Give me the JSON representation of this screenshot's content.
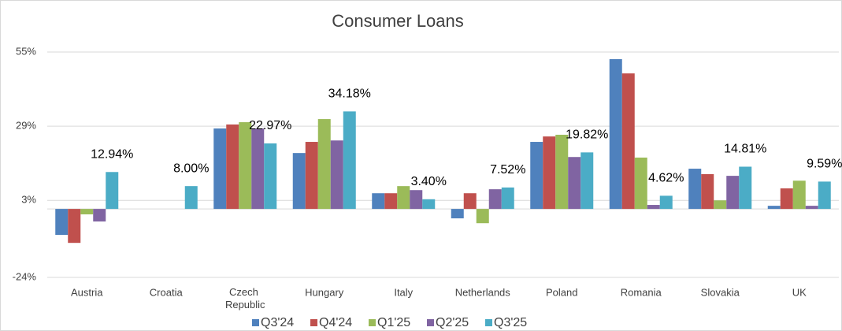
{
  "chart_data": {
    "type": "bar",
    "title": "Consumer Loans",
    "categories": [
      "Austria",
      "Croatia",
      "Czech Republic",
      "Hungary",
      "Italy",
      "Netherlands",
      "Poland",
      "Romania",
      "Slovakia",
      "UK"
    ],
    "series": [
      {
        "name": "Q3'24",
        "color": "#4f81bd",
        "values": [
          -9.1,
          null,
          28.2,
          19.6,
          5.5,
          -3.3,
          23.5,
          52.5,
          14.1,
          1.1
        ]
      },
      {
        "name": "Q4'24",
        "color": "#c0504d",
        "values": [
          -11.9,
          null,
          29.6,
          23.5,
          5.5,
          5.5,
          25.4,
          47.5,
          12.2,
          7.2
        ]
      },
      {
        "name": "Q1'25",
        "color": "#9bbb59",
        "values": [
          -1.9,
          null,
          30.4,
          31.5,
          8.0,
          -5.0,
          26.0,
          18.0,
          3.0,
          9.9
        ]
      },
      {
        "name": "Q2'25",
        "color": "#8064a2",
        "values": [
          -4.4,
          null,
          28.2,
          24.0,
          6.6,
          6.9,
          18.2,
          1.4,
          11.6,
          1.1
        ]
      },
      {
        "name": "Q3'25",
        "color": "#4bacc6",
        "values": [
          12.94,
          8.0,
          22.97,
          34.18,
          3.4,
          7.52,
          19.82,
          4.62,
          14.81,
          9.59
        ],
        "value_labels": [
          "12.94%",
          "8.00%",
          "22.97%",
          "34.18%",
          "3.40%",
          "7.52%",
          "19.82%",
          "4.62%",
          "14.81%",
          "9.59%"
        ]
      }
    ],
    "ylim": [
      -24,
      55
    ],
    "yticks": [
      {
        "value": -24,
        "label": "-24%"
      },
      {
        "value": 3,
        "label": "3%"
      },
      {
        "value": 29,
        "label": "29%"
      },
      {
        "value": 55,
        "label": "55%"
      }
    ],
    "grid": true
  }
}
